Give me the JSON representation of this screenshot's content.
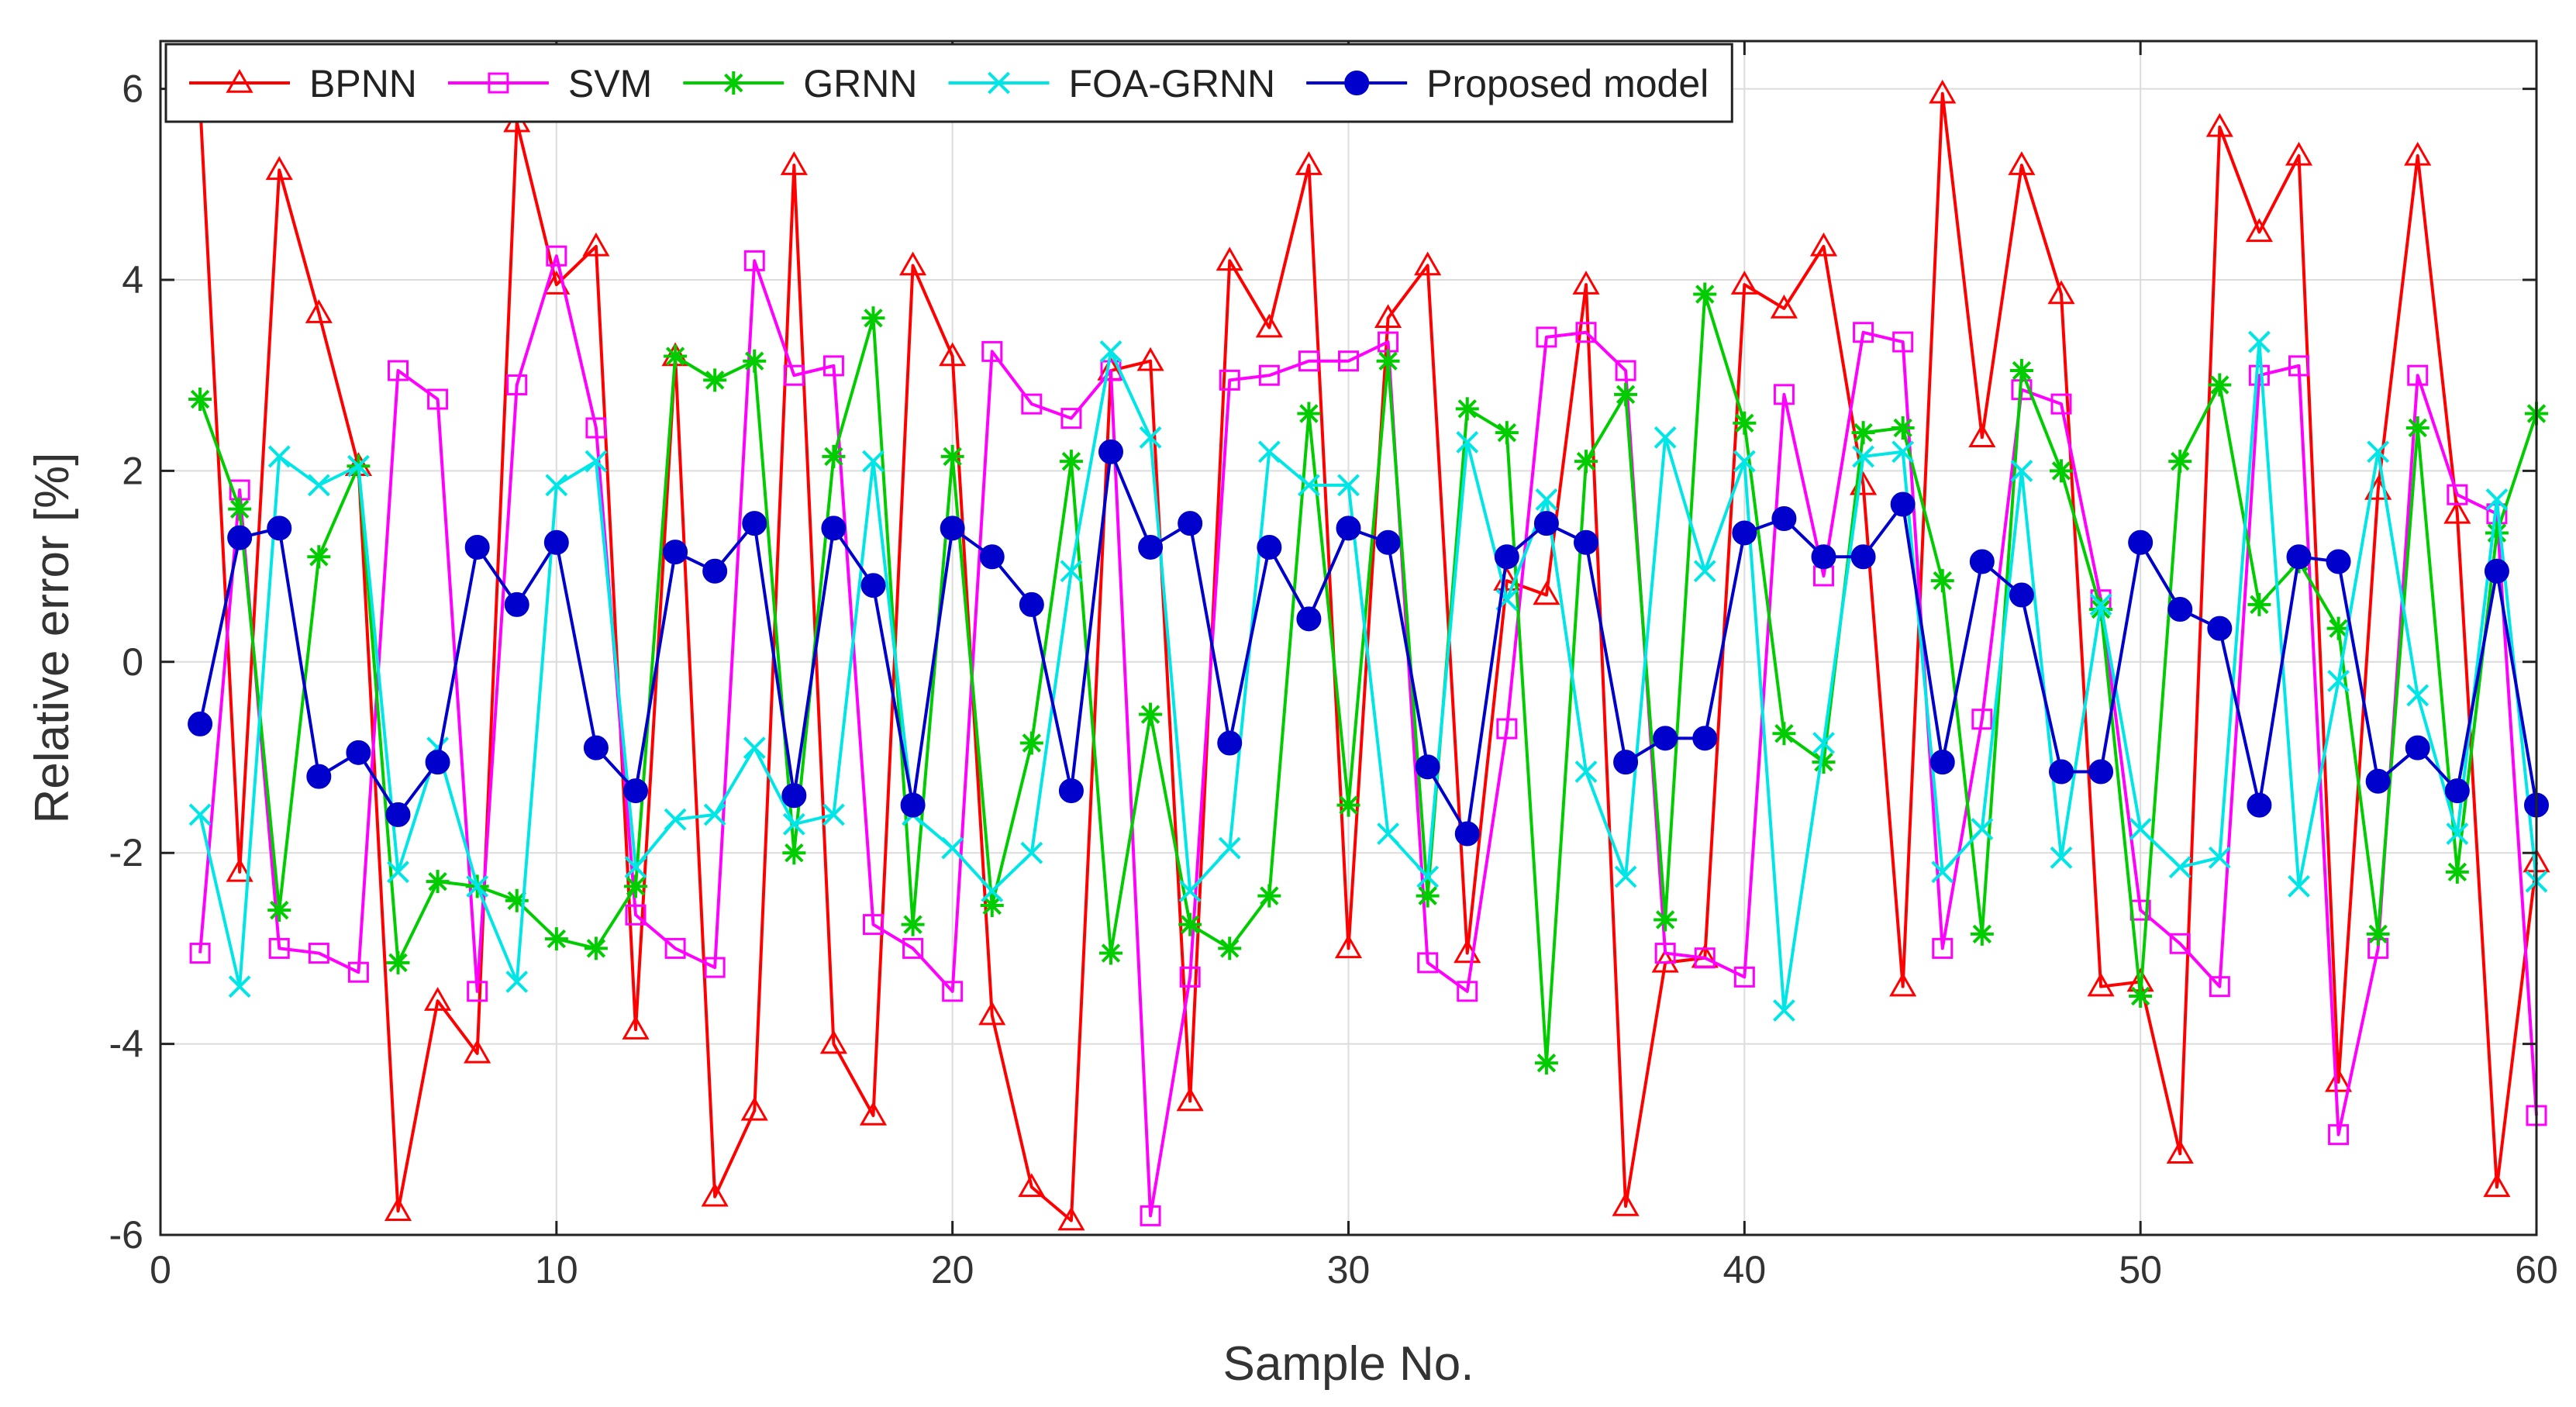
{
  "chart_data": {
    "type": "line",
    "title": "",
    "xlabel": "Sample No.",
    "ylabel": "Relative error [%]",
    "xlim": [
      0,
      60
    ],
    "ylim": [
      -6,
      6.5
    ],
    "xticks": [
      0,
      10,
      20,
      30,
      40,
      50,
      60
    ],
    "yticks": [
      -6,
      -4,
      -2,
      0,
      2,
      4,
      6
    ],
    "xtick_labels": [
      "0",
      "10",
      "20",
      "30",
      "40",
      "50",
      "60"
    ],
    "ytick_labels": [
      "-6",
      "-4",
      "-2",
      "0",
      "2",
      "4",
      "6"
    ],
    "grid": true,
    "legend_position": "top-left",
    "x": [
      1,
      2,
      3,
      4,
      5,
      6,
      7,
      8,
      9,
      10,
      11,
      12,
      13,
      14,
      15,
      16,
      17,
      18,
      19,
      20,
      21,
      22,
      23,
      24,
      25,
      26,
      27,
      28,
      29,
      30,
      31,
      32,
      33,
      34,
      35,
      36,
      37,
      38,
      39,
      40,
      41,
      42,
      43,
      44,
      45,
      46,
      47,
      48,
      49,
      50,
      51,
      52,
      53,
      54,
      55,
      56,
      57,
      58,
      59,
      60
    ],
    "series": [
      {
        "name": "BPNN",
        "color": "#ff0000",
        "marker": "triangle",
        "values": [
          5.85,
          -2.2,
          5.15,
          3.65,
          2.05,
          -5.75,
          -3.55,
          -4.1,
          5.65,
          3.95,
          4.35,
          -3.85,
          3.2,
          -5.6,
          -4.7,
          5.2,
          -4.0,
          -4.75,
          4.15,
          3.2,
          -3.7,
          -5.5,
          -5.85,
          3.05,
          3.15,
          -4.6,
          4.2,
          3.5,
          5.2,
          -3.0,
          3.6,
          4.15,
          -3.05,
          0.85,
          0.7,
          3.95,
          -5.7,
          -3.15,
          -3.1,
          3.95,
          3.7,
          4.35,
          1.85,
          -3.4,
          5.95,
          2.35,
          5.2,
          3.85,
          -3.4,
          -3.35,
          -5.15,
          5.6,
          4.5,
          5.3,
          -4.4,
          1.8,
          5.3,
          1.55,
          -5.5,
          -2.1
        ]
      },
      {
        "name": "SVM",
        "color": "#ff00ff",
        "marker": "square",
        "values": [
          -3.05,
          1.8,
          -3.0,
          -3.05,
          -3.25,
          3.05,
          2.75,
          -3.45,
          2.9,
          4.25,
          2.45,
          -2.65,
          -3.0,
          -3.2,
          4.2,
          3.0,
          3.1,
          -2.75,
          -3.0,
          -3.45,
          3.25,
          2.7,
          2.55,
          3.05,
          -5.8,
          -3.3,
          2.95,
          3.0,
          3.15,
          3.15,
          3.35,
          -3.15,
          -3.45,
          -0.7,
          3.4,
          3.45,
          3.05,
          -3.05,
          -3.1,
          -3.3,
          2.8,
          0.9,
          3.45,
          3.35,
          -3.0,
          -0.6,
          2.85,
          2.7,
          0.65,
          -2.6,
          -2.95,
          -3.4,
          3.0,
          3.1,
          -4.95,
          -3.0,
          3.0,
          1.75,
          1.55,
          -4.75
        ]
      },
      {
        "name": "GRNN",
        "color": "#00cc00",
        "marker": "asterisk",
        "values": [
          2.75,
          1.6,
          -2.6,
          1.1,
          2.05,
          -3.15,
          -2.3,
          -2.35,
          -2.5,
          -2.9,
          -3.0,
          -2.35,
          3.2,
          2.95,
          3.15,
          -2.0,
          2.15,
          3.6,
          -2.75,
          2.15,
          -2.55,
          -0.85,
          2.1,
          -3.05,
          -0.55,
          -2.75,
          -3.0,
          -2.45,
          2.6,
          -1.5,
          3.15,
          -2.45,
          2.65,
          2.4,
          -4.2,
          2.1,
          2.8,
          -2.7,
          3.85,
          2.5,
          -0.75,
          -1.05,
          2.4,
          2.45,
          0.85,
          -2.85,
          3.05,
          2.0,
          0.55,
          -3.5,
          2.1,
          2.9,
          0.6,
          1.05,
          0.35,
          -2.85,
          2.45,
          -2.2,
          1.35,
          2.6
        ]
      },
      {
        "name": "FOA-GRNN",
        "color": "#00e6e6",
        "marker": "x",
        "values": [
          -1.6,
          -3.4,
          2.15,
          1.85,
          2.05,
          -2.2,
          -0.9,
          -2.35,
          -3.35,
          1.85,
          2.1,
          -2.15,
          -1.65,
          -1.6,
          -0.9,
          -1.7,
          -1.6,
          2.1,
          -1.6,
          -1.95,
          -2.4,
          -2.0,
          0.95,
          3.25,
          2.35,
          -2.4,
          -1.95,
          2.2,
          1.85,
          1.85,
          -1.8,
          -2.25,
          2.3,
          0.65,
          1.7,
          -1.15,
          -2.25,
          2.35,
          0.95,
          2.1,
          -3.65,
          -0.85,
          2.15,
          2.2,
          -2.2,
          -1.75,
          2.0,
          -2.05,
          0.6,
          -1.75,
          -2.15,
          -2.05,
          3.35,
          -2.35,
          -0.2,
          2.2,
          -0.35,
          -1.8,
          1.7,
          -2.3
        ]
      },
      {
        "name": "Proposed model",
        "color": "#0000cc",
        "marker": "circle",
        "values": [
          -0.65,
          1.3,
          1.4,
          -1.2,
          -0.95,
          -1.6,
          -1.05,
          1.2,
          0.6,
          1.25,
          -0.9,
          -1.35,
          1.15,
          0.95,
          1.45,
          -1.4,
          1.4,
          0.8,
          -1.5,
          1.4,
          1.1,
          0.6,
          -1.35,
          2.2,
          1.2,
          1.45,
          -0.85,
          1.2,
          0.45,
          1.4,
          1.25,
          -1.1,
          -1.8,
          1.1,
          1.45,
          1.25,
          -1.05,
          -0.8,
          -0.8,
          1.35,
          1.5,
          1.1,
          1.1,
          1.65,
          -1.05,
          1.05,
          0.7,
          -1.15,
          -1.15,
          1.25,
          0.55,
          0.35,
          -1.5,
          1.1,
          1.05,
          -1.25,
          -0.9,
          -1.35,
          0.95,
          -1.5
        ]
      }
    ]
  }
}
